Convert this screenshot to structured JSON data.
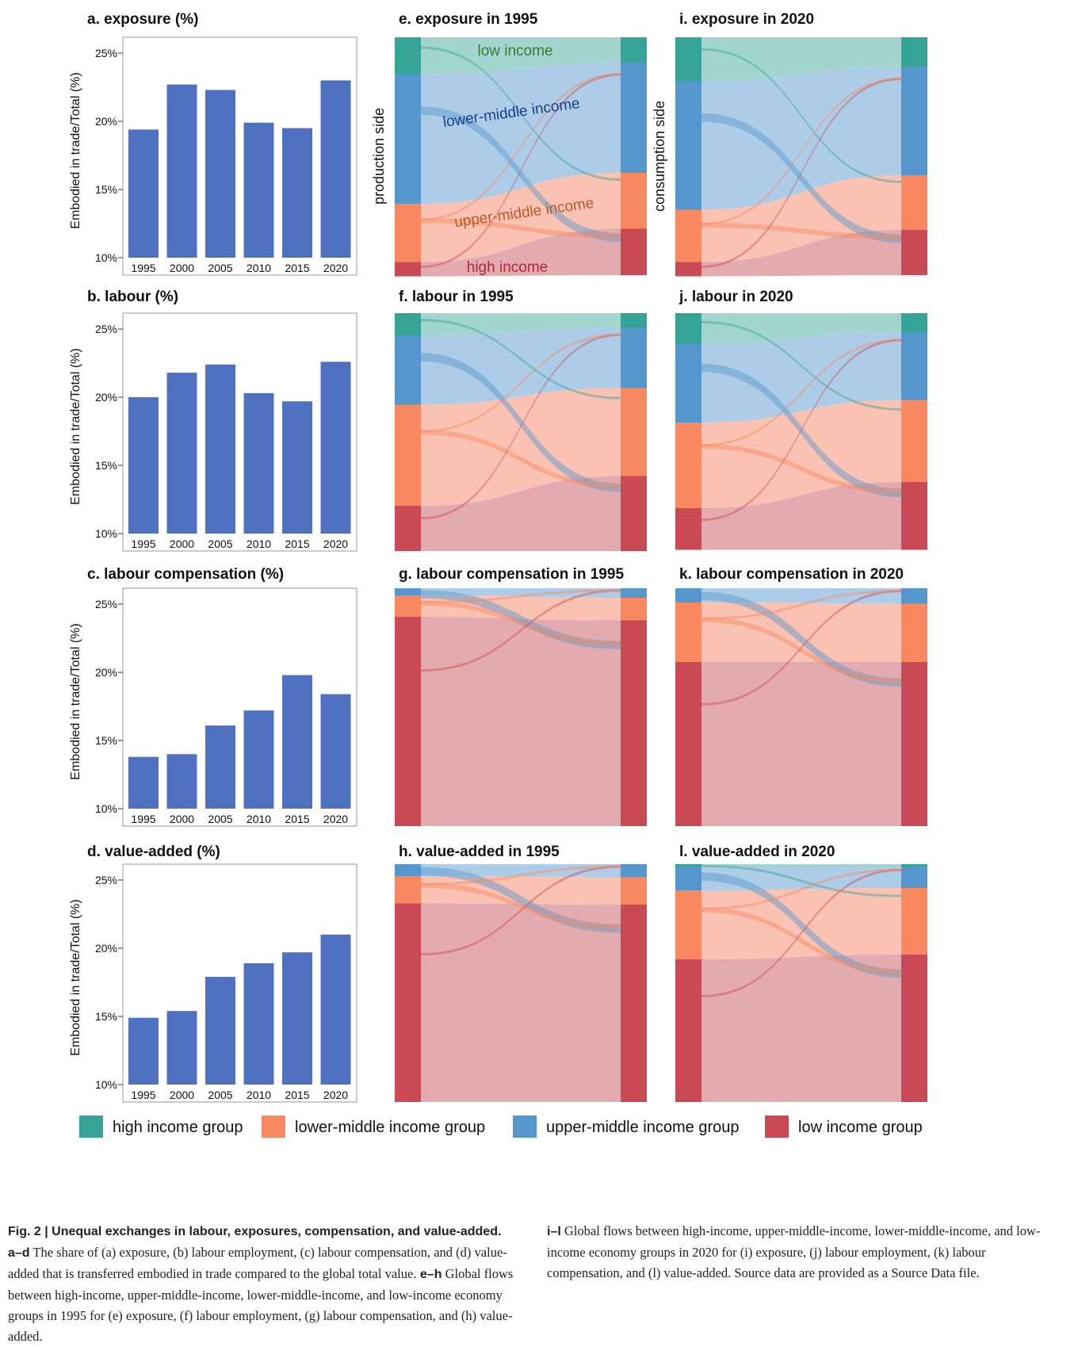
{
  "bar_panels": [
    {
      "title": "a. exposure (%)"
    },
    {
      "title": "b. labour (%)"
    },
    {
      "title": "c. labour compensation (%)"
    },
    {
      "title": "d. value-added (%)"
    }
  ],
  "sankey_panels": [
    {
      "title": "e. exposure in 1995",
      "left_label": "production side"
    },
    {
      "title": "i. exposure in 2020",
      "left_label": "consumption side"
    },
    {
      "title": "f. labour in 1995"
    },
    {
      "title": "j. labour in 2020"
    },
    {
      "title": "g. labour compensation in 1995"
    },
    {
      "title": "k. labour compensation in 2020"
    },
    {
      "title": "h. value-added in 1995"
    },
    {
      "title": "l. value-added in 2020"
    }
  ],
  "flow_labels": {
    "low": "low income",
    "lower_middle": "lower-middle income",
    "upper_middle": "upper-middle income",
    "high": "high income"
  },
  "legend": [
    {
      "label": "high income group",
      "color": "#35a497"
    },
    {
      "label": "lower-middle income group",
      "color": "#f98960"
    },
    {
      "label": "upper-middle income group",
      "color": "#5597cd"
    },
    {
      "label": "low income group",
      "color": "#c94a55"
    }
  ],
  "caption": {
    "fig": "Fig. 2 | ",
    "title": "Unequal exchanges in labour, exposures, compensation, and value-added.",
    "ad_ref": " a–d",
    "ad_text": " The share of (a) exposure, (b) labour employment, (c) labour compensation, and (d) value-added that is transferred embodied in trade compared to the global total value.",
    "eh_ref": " e–h",
    "eh_text": " Global flows between high-income, upper-middle-income, lower-middle-income, and low-income economy groups in 1995 for (e) exposure, (f) labour employment, (g) labour compensation, and (h) value-added.",
    "il_ref": "i–l",
    "il_text": " Global flows between high-income, upper-middle-income, lower-middle-income, and low-income economy groups in 2020 for (i) exposure, (j) labour employment, (k) labour compensation, and (l) value-added. Source data are provided as a Source Data file."
  },
  "chart_data": [
    {
      "type": "bar",
      "title": "a. exposure (%)",
      "categories": [
        "1995",
        "2000",
        "2005",
        "2010",
        "2015",
        "2020"
      ],
      "values": [
        19.4,
        22.7,
        22.3,
        19.9,
        19.5,
        23.0
      ],
      "ylabel": "Embodied in trade/Total (%)",
      "ylim": [
        10,
        25.7
      ],
      "yticks": [
        "10%",
        "15%",
        "20%",
        "25%"
      ],
      "color": "#5070c0"
    },
    {
      "type": "bar",
      "title": "b. labour (%)",
      "categories": [
        "1995",
        "2000",
        "2005",
        "2010",
        "2015",
        "2020"
      ],
      "values": [
        20.0,
        21.8,
        22.4,
        20.3,
        19.7,
        22.6
      ],
      "ylabel": "Embodied in trade/Total (%)",
      "ylim": [
        10,
        25.7
      ],
      "yticks": [
        "10%",
        "15%",
        "20%",
        "25%"
      ],
      "color": "#5070c0"
    },
    {
      "type": "bar",
      "title": "c. labour compensation (%)",
      "categories": [
        "1995",
        "2000",
        "2005",
        "2010",
        "2015",
        "2020"
      ],
      "values": [
        13.8,
        14.0,
        16.1,
        17.2,
        19.8,
        18.4
      ],
      "ylabel": "Embodied in trade/Total (%)",
      "ylim": [
        10,
        25.7
      ],
      "yticks": [
        "10%",
        "15%",
        "20%",
        "25%"
      ],
      "color": "#5070c0"
    },
    {
      "type": "bar",
      "title": "d. value-added (%)",
      "categories": [
        "1995",
        "2000",
        "2005",
        "2010",
        "2015",
        "2020"
      ],
      "values": [
        14.9,
        15.4,
        17.9,
        18.9,
        19.7,
        21.0
      ],
      "ylabel": "Embodied in trade/Total (%)",
      "ylim": [
        10,
        25.7
      ],
      "yticks": [
        "10%",
        "15%",
        "20%",
        "25%"
      ],
      "color": "#5070c0"
    },
    {
      "type": "sankey",
      "title": "e. exposure in 1995",
      "order": [
        "high",
        "upper_middle",
        "lower_middle",
        "low"
      ],
      "source": [
        0.155,
        0.545,
        0.245,
        0.06
      ],
      "target": [
        0.105,
        0.465,
        0.235,
        0.195
      ]
    },
    {
      "type": "sankey",
      "title": "i. exposure in 2020",
      "order": [
        "high",
        "upper_middle",
        "lower_middle",
        "low"
      ],
      "source": [
        0.185,
        0.54,
        0.22,
        0.06
      ],
      "target": [
        0.125,
        0.455,
        0.23,
        0.19
      ]
    },
    {
      "type": "sankey",
      "title": "f. labour in 1995",
      "order": [
        "high",
        "upper_middle",
        "lower_middle",
        "low"
      ],
      "source": [
        0.095,
        0.29,
        0.425,
        0.19
      ],
      "target": [
        0.06,
        0.255,
        0.37,
        0.315
      ]
    },
    {
      "type": "sankey",
      "title": "j. labour in 2020",
      "order": [
        "high",
        "upper_middle",
        "lower_middle",
        "low"
      ],
      "source": [
        0.13,
        0.33,
        0.36,
        0.175
      ],
      "target": [
        0.08,
        0.285,
        0.345,
        0.285
      ]
    },
    {
      "type": "sankey",
      "title": "g. labour compensation in 1995",
      "order": [
        "high",
        "upper_middle",
        "lower_middle",
        "low"
      ],
      "source": [
        0.0,
        0.03,
        0.09,
        0.88
      ],
      "target": [
        0.0,
        0.04,
        0.095,
        0.865
      ]
    },
    {
      "type": "sankey",
      "title": "k. labour compensation in 2020",
      "order": [
        "high",
        "upper_middle",
        "lower_middle",
        "low"
      ],
      "source": [
        0.0,
        0.06,
        0.25,
        0.69
      ],
      "target": [
        0.0,
        0.065,
        0.245,
        0.69
      ]
    },
    {
      "type": "sankey",
      "title": "h. value-added in 1995",
      "order": [
        "high",
        "upper_middle",
        "lower_middle",
        "low"
      ],
      "source": [
        0.0,
        0.05,
        0.115,
        0.835
      ],
      "target": [
        0.0,
        0.055,
        0.115,
        0.83
      ]
    },
    {
      "type": "sankey",
      "title": "l. value-added in 2020",
      "order": [
        "high",
        "upper_middle",
        "lower_middle",
        "low"
      ],
      "source": [
        0.01,
        0.1,
        0.29,
        0.6
      ],
      "target": [
        0.01,
        0.09,
        0.28,
        0.62
      ]
    }
  ]
}
